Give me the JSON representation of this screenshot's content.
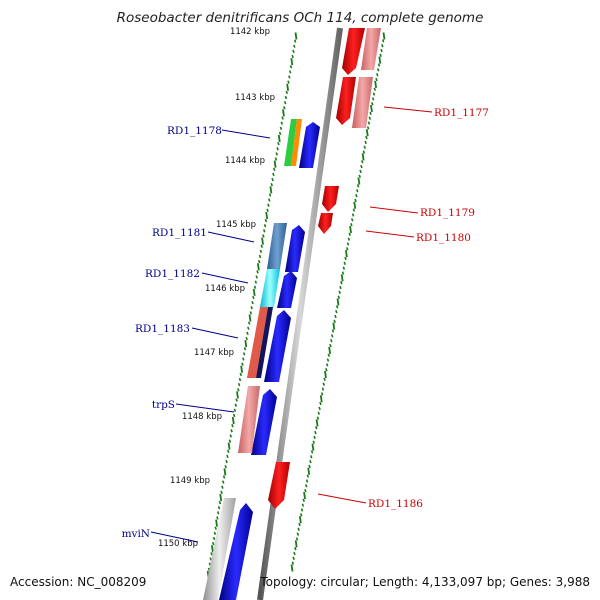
{
  "title": "Roseobacter denitrificans OCh 114, complete genome",
  "footer": {
    "accession": "Accession: NC_008209",
    "summary": "Topology: circular; Length: 4,133,097 bp; Genes: 3,988"
  },
  "scale_kbp": 1000,
  "ticks": [
    {
      "kbp": 1142,
      "label": "1142 kbp"
    },
    {
      "kbp": 1143,
      "label": "1143 kbp"
    },
    {
      "kbp": 1144,
      "label": "1144 kbp"
    },
    {
      "kbp": 1145,
      "label": "1145 kbp"
    },
    {
      "kbp": 1146,
      "label": "1146 kbp"
    },
    {
      "kbp": 1147,
      "label": "1147 kbp"
    },
    {
      "kbp": 1148,
      "label": "1148 kbp"
    },
    {
      "kbp": 1149,
      "label": "1149 kbp"
    },
    {
      "kbp": 1150,
      "label": "1150 kbp"
    }
  ],
  "genes": [
    {
      "name": "RD1_1178",
      "strand": "+",
      "color": "#2ecc40"
    },
    {
      "name": "RD1_1181",
      "strand": "+",
      "color": "#4a7fb5"
    },
    {
      "name": "RD1_1182",
      "strand": "+",
      "color": "#00e5ff"
    },
    {
      "name": "RD1_1183",
      "strand": "+",
      "color": "#e05a4a"
    },
    {
      "name": "trpS",
      "strand": "+",
      "color": "#e89090"
    },
    {
      "name": "mviN",
      "strand": "+",
      "color": "#bdbdbd"
    },
    {
      "name": "RD1_1177",
      "strand": "-",
      "color": "#ff0000"
    },
    {
      "name": "RD1_1179",
      "strand": "-",
      "color": "#ff0000"
    },
    {
      "name": "RD1_1180",
      "strand": "-",
      "color": "#ff0000"
    },
    {
      "name": "RD1_1186",
      "strand": "-",
      "color": "#ff0000"
    }
  ],
  "colors": {
    "forward_label": "#00008b",
    "reverse_label": "#cc0000",
    "forward_arrow": "#0000ff",
    "reverse_arrow": "#ff0000",
    "tick_dots": "#1a7a1a",
    "backbone": "#777777"
  }
}
